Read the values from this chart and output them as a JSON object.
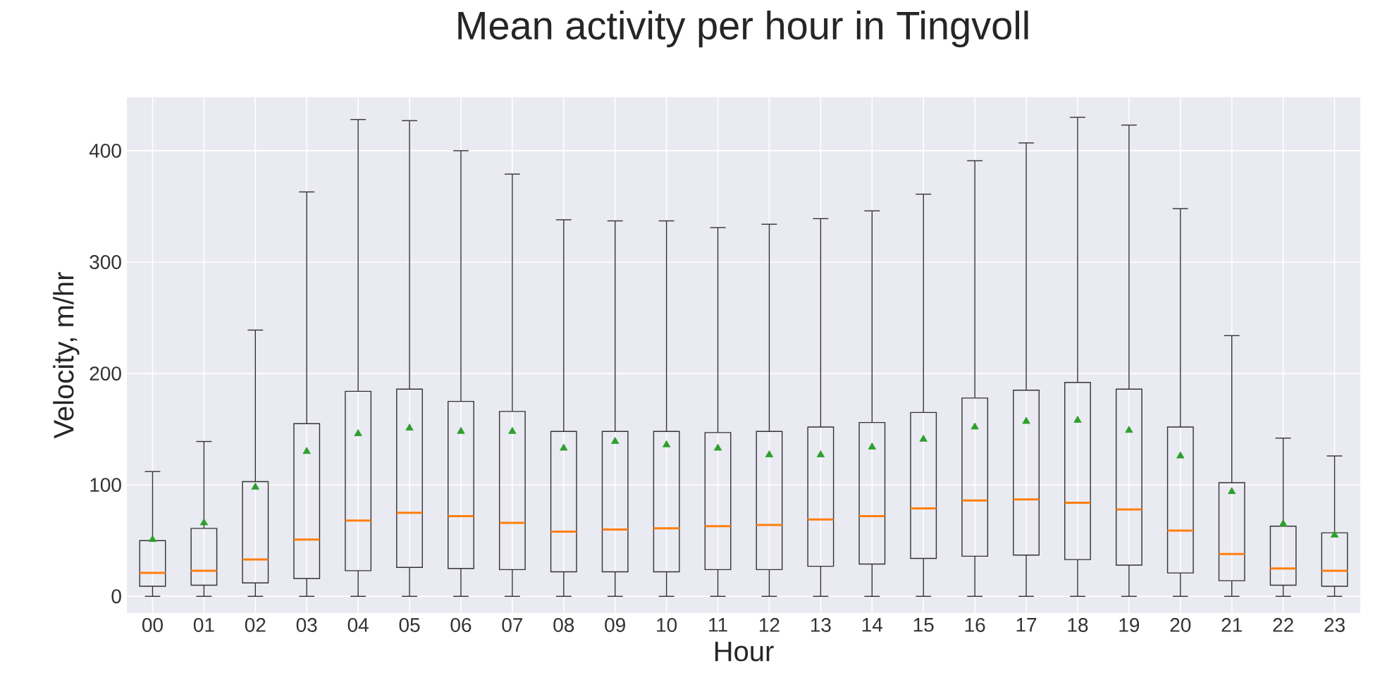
{
  "chart_data": {
    "type": "box",
    "title": "Mean activity per hour in Tingvoll",
    "xlabel": "Hour",
    "ylabel": "Velocity, m/hr",
    "categories": [
      "00",
      "01",
      "02",
      "03",
      "04",
      "05",
      "06",
      "07",
      "08",
      "09",
      "10",
      "11",
      "12",
      "13",
      "14",
      "15",
      "16",
      "17",
      "18",
      "19",
      "20",
      "21",
      "22",
      "23"
    ],
    "boxes": [
      {
        "low": 0,
        "q1": 9,
        "median": 21,
        "q3": 50,
        "high": 112,
        "mean": 51
      },
      {
        "low": 0,
        "q1": 10,
        "median": 23,
        "q3": 61,
        "high": 139,
        "mean": 66
      },
      {
        "low": 0,
        "q1": 12,
        "median": 33,
        "q3": 103,
        "high": 239,
        "mean": 98
      },
      {
        "low": 0,
        "q1": 16,
        "median": 51,
        "q3": 155,
        "high": 363,
        "mean": 130
      },
      {
        "low": 0,
        "q1": 23,
        "median": 68,
        "q3": 184,
        "high": 428,
        "mean": 146
      },
      {
        "low": 0,
        "q1": 26,
        "median": 75,
        "q3": 186,
        "high": 427,
        "mean": 151
      },
      {
        "low": 0,
        "q1": 25,
        "median": 72,
        "q3": 175,
        "high": 400,
        "mean": 148
      },
      {
        "low": 0,
        "q1": 24,
        "median": 66,
        "q3": 166,
        "high": 379,
        "mean": 148
      },
      {
        "low": 0,
        "q1": 22,
        "median": 58,
        "q3": 148,
        "high": 338,
        "mean": 133
      },
      {
        "low": 0,
        "q1": 22,
        "median": 60,
        "q3": 148,
        "high": 337,
        "mean": 139
      },
      {
        "low": 0,
        "q1": 22,
        "median": 61,
        "q3": 148,
        "high": 337,
        "mean": 136
      },
      {
        "low": 0,
        "q1": 24,
        "median": 63,
        "q3": 147,
        "high": 331,
        "mean": 133
      },
      {
        "low": 0,
        "q1": 24,
        "median": 64,
        "q3": 148,
        "high": 334,
        "mean": 127
      },
      {
        "low": 0,
        "q1": 27,
        "median": 69,
        "q3": 152,
        "high": 339,
        "mean": 127
      },
      {
        "low": 0,
        "q1": 29,
        "median": 72,
        "q3": 156,
        "high": 346,
        "mean": 134
      },
      {
        "low": 0,
        "q1": 34,
        "median": 79,
        "q3": 165,
        "high": 361,
        "mean": 141
      },
      {
        "low": 0,
        "q1": 36,
        "median": 86,
        "q3": 178,
        "high": 391,
        "mean": 152
      },
      {
        "low": 0,
        "q1": 37,
        "median": 87,
        "q3": 185,
        "high": 407,
        "mean": 157
      },
      {
        "low": 0,
        "q1": 33,
        "median": 84,
        "q3": 192,
        "high": 430,
        "mean": 158
      },
      {
        "low": 0,
        "q1": 28,
        "median": 78,
        "q3": 186,
        "high": 423,
        "mean": 149
      },
      {
        "low": 0,
        "q1": 21,
        "median": 59,
        "q3": 152,
        "high": 348,
        "mean": 126
      },
      {
        "low": 0,
        "q1": 14,
        "median": 38,
        "q3": 102,
        "high": 234,
        "mean": 94
      },
      {
        "low": 0,
        "q1": 10,
        "median": 25,
        "q3": 63,
        "high": 142,
        "mean": 65
      },
      {
        "low": 0,
        "q1": 9,
        "median": 23,
        "q3": 57,
        "high": 126,
        "mean": 55
      }
    ],
    "color": "#333333",
    "marker": "triangle",
    "ylim": [
      -15,
      448
    ],
    "yticks": [
      0,
      100,
      200,
      300,
      400
    ],
    "grid": true
  }
}
